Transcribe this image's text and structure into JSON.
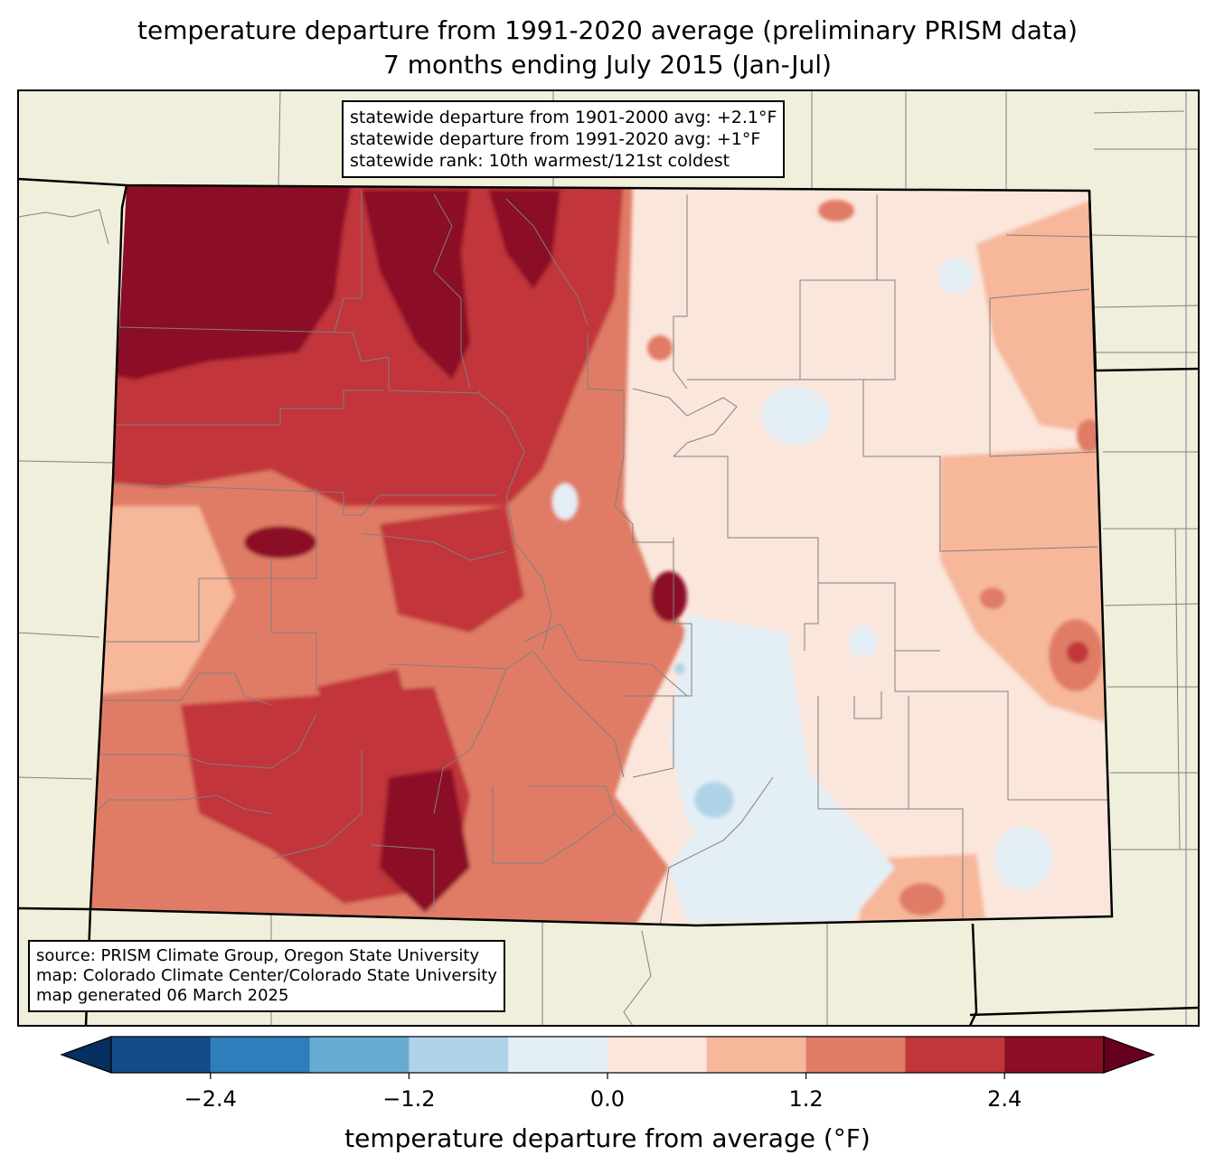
{
  "header": {
    "title_line1": "temperature departure from 1991-2020 average (preliminary PRISM data)",
    "title_line2": "7 months ending July 2015 (Jan-Jul)"
  },
  "stats_box": {
    "line1": "statewide departure from 1901-2000 avg: +2.1°F",
    "line2": "statewide departure from 1991-2020 avg: +1°F",
    "line3": "statewide rank: 10th warmest/121st coldest"
  },
  "source_box": {
    "line1": "source: PRISM Climate Group, Oregon State University",
    "line2": "map: Colorado Climate Center/Colorado State University",
    "line3": "map generated 06 March 2025"
  },
  "colorbar": {
    "label": "temperature departure from average (°F)",
    "ticks": [
      "−2.4",
      "−1.2",
      "0.0",
      "1.2",
      "2.4"
    ],
    "tick_values": [
      -2.4,
      -1.2,
      0.0,
      1.2,
      2.4
    ],
    "min": -3.0,
    "max": 3.0,
    "colors": [
      "#053061",
      "#144b8a",
      "#2e7ebc",
      "#68abd0",
      "#afd4e7",
      "#e4eef5",
      "#fbe6dc",
      "#f6b79b",
      "#e07c65",
      "#c1363a",
      "#8b0e26",
      "#67001f"
    ]
  },
  "colors": {
    "land_outside": "#f0efdc",
    "state_border": "#000000",
    "county_line": "#808080"
  }
}
